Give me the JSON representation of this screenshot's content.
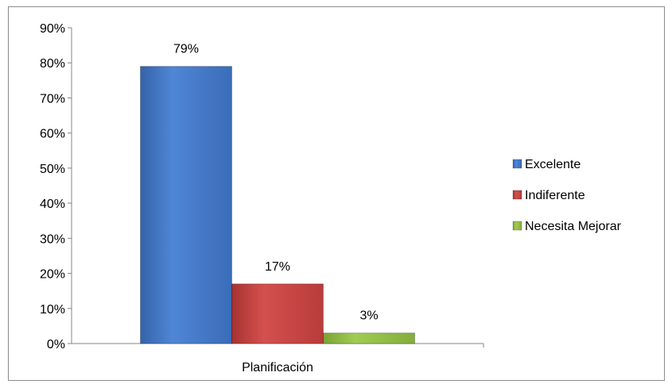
{
  "chart_data": {
    "type": "bar",
    "categories": [
      "Planificación"
    ],
    "series": [
      {
        "name": "Excelente",
        "values": [
          79
        ],
        "color": "#4a7fd0"
      },
      {
        "name": "Indiferente",
        "values": [
          17
        ],
        "color": "#c94543"
      },
      {
        "name": "Necesita Mejorar",
        "values": [
          3
        ],
        "color": "#93c146"
      }
    ],
    "data_labels": [
      "79%",
      "17%",
      "3%"
    ],
    "ylim": [
      0,
      90
    ],
    "yticks": [
      "0%",
      "10%",
      "20%",
      "30%",
      "40%",
      "50%",
      "60%",
      "70%",
      "80%",
      "90%"
    ],
    "ytick_values": [
      0,
      10,
      20,
      30,
      40,
      50,
      60,
      70,
      80,
      90
    ],
    "grid": false,
    "legend_position": "right"
  }
}
